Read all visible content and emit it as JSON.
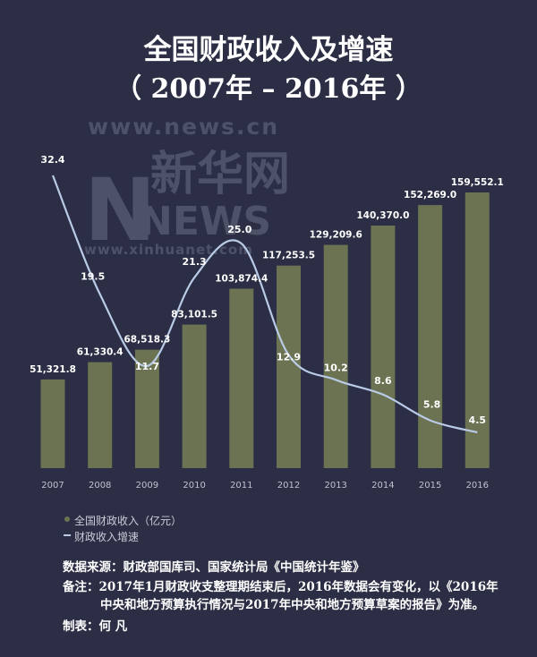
{
  "title": "全国财政收入及增速",
  "subtitle": "（ 2007年 – 2016年 ）",
  "watermark": {
    "url_top": "www.news.cn",
    "brand_cn": "新华网",
    "brand_en": "NEWS",
    "url_bottom": "www.xinhuanet.com"
  },
  "chart_data": {
    "type": "bar",
    "categories": [
      "2007",
      "2008",
      "2009",
      "2010",
      "2011",
      "2012",
      "2013",
      "2014",
      "2015",
      "2016"
    ],
    "series": [
      {
        "name": "全国财政收入（亿元）",
        "type": "bar",
        "values": [
          51321.8,
          61330.4,
          68518.3,
          83101.5,
          103874.4,
          117253.5,
          129209.6,
          140370.0,
          152269.0,
          159552.1
        ],
        "labels": [
          "51,321.8",
          "61,330.4",
          "68,518.3",
          "83,101.5",
          "103,874.4",
          "117,253.5",
          "129,209.6",
          "140,370.0",
          "152,269.0",
          "159,552.1"
        ]
      },
      {
        "name": "财政收入增速",
        "type": "line",
        "values": [
          32.4,
          19.5,
          11.7,
          21.3,
          25.0,
          12.9,
          10.2,
          8.6,
          5.8,
          4.5
        ],
        "labels": [
          "32.4",
          "19.5",
          "11.7",
          "21.3",
          "25.0",
          "12.9",
          "10.2",
          "8.6",
          "5.8",
          "4.5"
        ]
      }
    ],
    "legend_position": "bottom-left",
    "grid": false
  },
  "colors": {
    "background": "#2b2e44",
    "bar": "#6b7352",
    "line": "#b9cbe6",
    "axis_text": "#c0c2cf"
  },
  "footer": {
    "source": "数据来源：财政部国库司、国家统计局《中国统计年鉴》",
    "note_line1": "备注：2017年1月财政收支整理期结束后，2016年数据会有变化，以《2016年",
    "note_line2": "中央和地方预算执行情况与2017年中央和地方预算草案的报告》为准。",
    "credit": "制表：何 凡"
  }
}
